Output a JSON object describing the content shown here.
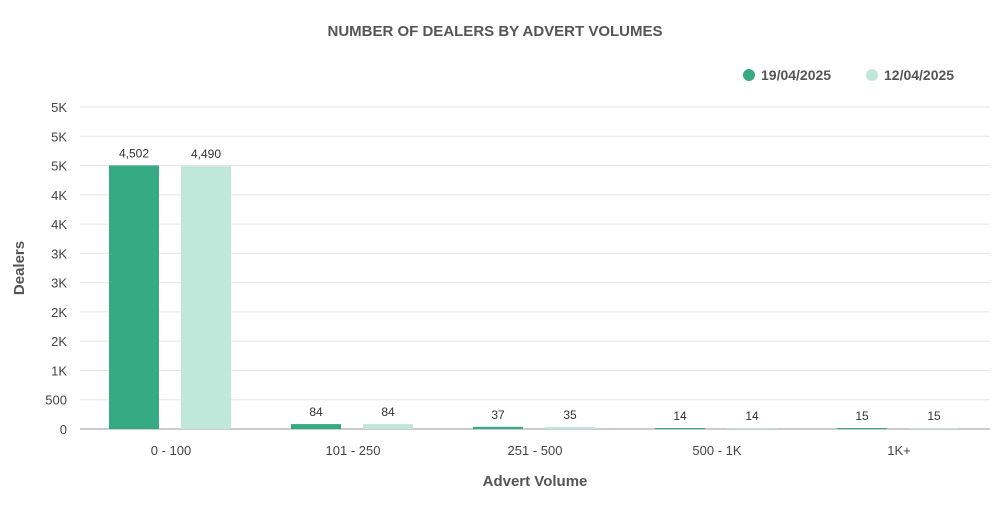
{
  "chart_data": {
    "type": "bar",
    "title": "NUMBER OF DEALERS BY ADVERT VOLUMES",
    "xlabel": "Advert Volume",
    "ylabel": "Dealers",
    "categories": [
      "0 - 100",
      "101 - 250",
      "251 - 500",
      "500 - 1K",
      "1K+"
    ],
    "series": [
      {
        "name": "19/04/2025",
        "color": "#36ab83",
        "values": [
          4502,
          84,
          37,
          14,
          15
        ],
        "labels": [
          "4,502",
          "84",
          "37",
          "14",
          "15"
        ]
      },
      {
        "name": "12/04/2025",
        "color": "#bfe8da",
        "values": [
          4490,
          84,
          35,
          14,
          15
        ],
        "labels": [
          "4,490",
          "84",
          "35",
          "14",
          "15"
        ]
      }
    ],
    "ylim": [
      0,
      5000
    ],
    "yticks": [
      0,
      500,
      1000,
      1500,
      2000,
      2500,
      3000,
      3500,
      4000,
      4500,
      5000
    ],
    "ytick_labels": [
      "0",
      "500",
      "1K",
      "2K",
      "2K",
      "3K",
      "3K",
      "4K",
      "4K",
      "5K",
      "5K"
    ],
    "grid": true,
    "legend_position": "top-right"
  }
}
